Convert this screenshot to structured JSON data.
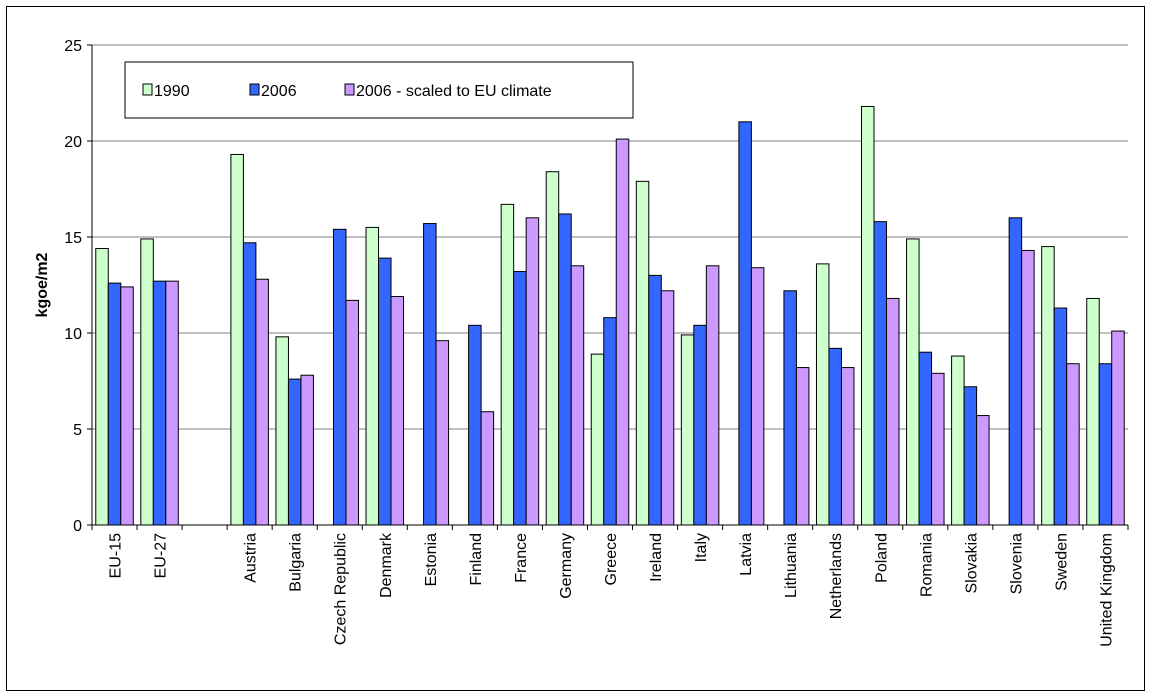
{
  "chart_data": {
    "type": "bar",
    "ylabel": "kgoe/m2",
    "xlabel": "",
    "ylim": [
      0,
      25
    ],
    "yticks": [
      0,
      5,
      10,
      15,
      20,
      25
    ],
    "grid": true,
    "legend_position": "top-left",
    "categories": [
      "EU-15",
      "EU-27",
      "",
      "Austria",
      "Bulgaria",
      "Czech Republic",
      "Denmark",
      "Estonia",
      "Finland",
      "France",
      "Germany",
      "Greece",
      "Ireland",
      "Italy",
      "Latvia",
      "Lithuania",
      "Netherlands",
      "Poland",
      "Romania",
      "Slovakia",
      "Slovenia",
      "Sweden",
      "United Kingdom"
    ],
    "series": [
      {
        "name": "1990",
        "color": "#ccffcc",
        "values": [
          14.4,
          14.9,
          null,
          19.3,
          9.8,
          null,
          15.5,
          null,
          null,
          16.7,
          18.4,
          8.9,
          17.9,
          9.9,
          null,
          null,
          13.6,
          21.8,
          14.9,
          8.8,
          null,
          14.5,
          11.8
        ]
      },
      {
        "name": "2006",
        "color": "#3366ff",
        "values": [
          12.6,
          12.7,
          null,
          14.7,
          7.6,
          15.4,
          13.9,
          15.7,
          10.4,
          13.2,
          16.2,
          10.8,
          13.0,
          10.4,
          21.0,
          12.2,
          9.2,
          15.8,
          9.0,
          7.2,
          16.0,
          11.3,
          8.4
        ]
      },
      {
        "name": "2006 - scaled to EU climate",
        "color": "#cc99ff",
        "values": [
          12.4,
          12.7,
          null,
          12.8,
          7.8,
          11.7,
          11.9,
          9.6,
          5.9,
          16.0,
          13.5,
          20.1,
          12.2,
          13.5,
          13.4,
          8.2,
          8.2,
          11.8,
          7.9,
          5.7,
          14.3,
          8.4,
          10.1
        ]
      }
    ]
  }
}
